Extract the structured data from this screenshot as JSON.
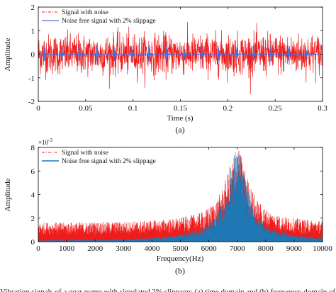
{
  "figure_caption_fragment": "Vibration signals of a gear pump with simulated 2% slippage: (a) time domain and (b) frequency domain of the simulated signal",
  "colors": {
    "noisy": "#ee1c1c",
    "clean_time": "#4a6fd8",
    "clean_freq": "#1f77b4",
    "axis": "#000000"
  },
  "chart_data": [
    {
      "type": "line",
      "panel_label": "(a)",
      "xlabel": "Time (s)",
      "ylabel": "Amplitude",
      "xlim": [
        0,
        0.3
      ],
      "ylim": [
        -2,
        2
      ],
      "x_ticks": [
        0,
        0.05,
        0.1,
        0.15,
        0.2,
        0.25,
        0.3
      ],
      "x_tick_labels": [
        "0",
        "0.05",
        "0.1",
        "0.15",
        "0.2",
        "0.25",
        "0.3"
      ],
      "y_ticks": [
        -2,
        -1,
        0,
        1,
        2
      ],
      "y_tick_labels": [
        "-2",
        "-1",
        "0",
        "1",
        "2"
      ],
      "grid": false,
      "legend_position": "top-left",
      "series": [
        {
          "name": "Signal with noise",
          "style": "dash-dot",
          "color": "#ee1c1c",
          "description_stats": {
            "mean": 0,
            "typical_band": [
              -1,
              1
            ],
            "peak_range": [
              -1.8,
              1.8
            ]
          }
        },
        {
          "name": "Noise free signal with 2% slippage",
          "style": "solid",
          "color": "#4a6fd8",
          "impulse_times": [
            0.006,
            0.0244,
            0.0428,
            0.0612,
            0.0796,
            0.098,
            0.1164,
            0.1348,
            0.1532,
            0.1716,
            0.19,
            0.2084,
            0.2268,
            0.2452,
            0.2636,
            0.282
          ],
          "impulse_amplitude": 0.35
        }
      ]
    },
    {
      "type": "line",
      "panel_label": "(b)",
      "xlabel": "Frequency(Hz)",
      "ylabel": "Amplitude",
      "y_multiplier": "×10",
      "y_multiplier_exp": "-3",
      "xlim": [
        0,
        10000
      ],
      "ylim": [
        0,
        0.008
      ],
      "x_ticks": [
        0,
        1000,
        2000,
        3000,
        4000,
        5000,
        6000,
        7000,
        8000,
        9000,
        10000
      ],
      "x_tick_labels": [
        "0",
        "1000",
        "2000",
        "3000",
        "4000",
        "5000",
        "6000",
        "7000",
        "8000",
        "9000",
        "10000"
      ],
      "y_ticks": [
        0,
        0.002,
        0.004,
        0.006,
        0.008
      ],
      "y_tick_labels": [
        "0",
        "2",
        "4",
        "6",
        "8"
      ],
      "grid": false,
      "legend_position": "top-left",
      "series": [
        {
          "name": "Signal with noise",
          "style": "dash-dot",
          "color": "#ee1c1c",
          "envelope": {
            "floor": 0.0016,
            "resonance_center": 7000,
            "resonance_peak": 0.0074,
            "resonance_halfwidth": 450
          }
        },
        {
          "name": "Noise free signal with 2% slippage",
          "style": "solid",
          "color": "#1f77b4",
          "envelope": {
            "floor": 0.0001,
            "resonance_center": 7000,
            "resonance_peak": 0.0071,
            "resonance_halfwidth": 400
          }
        }
      ]
    }
  ]
}
